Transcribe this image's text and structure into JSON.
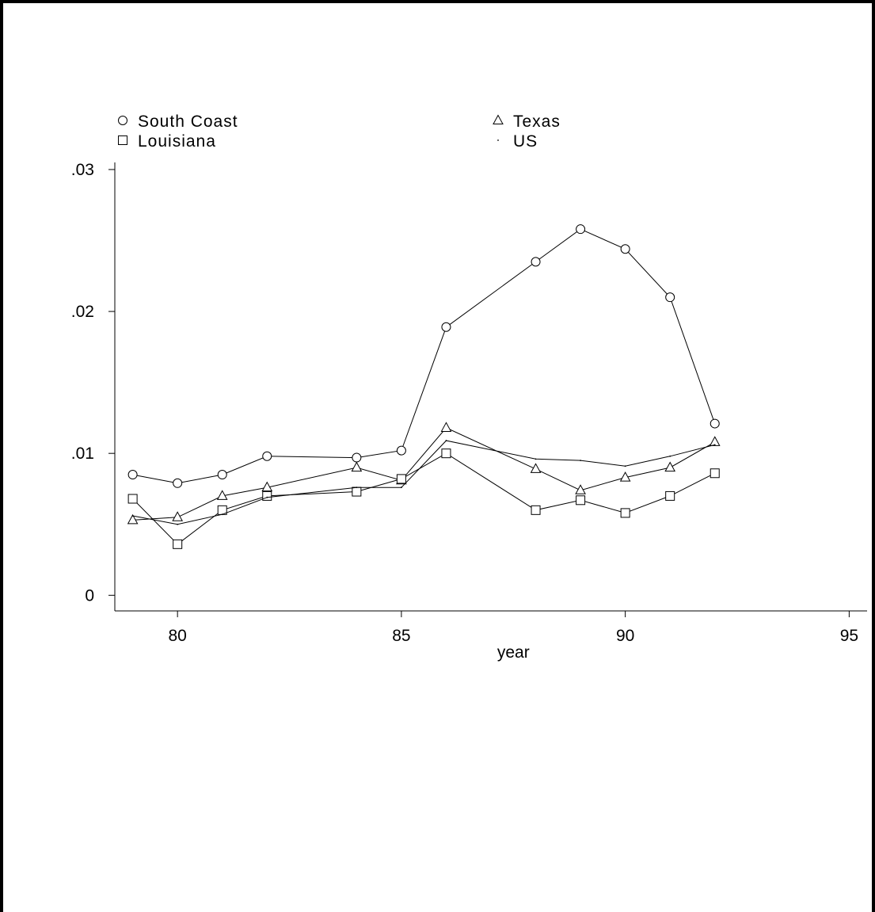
{
  "chart_data": {
    "type": "line",
    "xlabel": "year",
    "ylabel": "",
    "xlim": [
      78.6,
      95.4
    ],
    "ylim": [
      -0.0011,
      0.0305
    ],
    "xticks": [
      80,
      85,
      90,
      95
    ],
    "xtick_labels": [
      "80",
      "85",
      "90",
      "95"
    ],
    "yticks": [
      0,
      0.01,
      0.02,
      0.03
    ],
    "ytick_labels": [
      "0",
      ".01",
      ".02",
      ".03"
    ],
    "grid": false,
    "legend_position": "top",
    "series": [
      {
        "name": "South Coast",
        "marker": "circle",
        "x": [
          79,
          80,
          81,
          82,
          84,
          85,
          86,
          88,
          89,
          90,
          91,
          92
        ],
        "y": [
          0.0085,
          0.0079,
          0.0085,
          0.0098,
          0.0097,
          0.0102,
          0.0189,
          0.0235,
          0.0258,
          0.0244,
          0.021,
          0.0121
        ]
      },
      {
        "name": "Texas",
        "marker": "triangle",
        "x": [
          79,
          80,
          81,
          82,
          84,
          85,
          86,
          88,
          89,
          90,
          91,
          92
        ],
        "y": [
          0.0053,
          0.0055,
          0.007,
          0.0076,
          0.009,
          0.0081,
          0.0118,
          0.0089,
          0.0074,
          0.0083,
          0.009,
          0.0108
        ]
      },
      {
        "name": "Louisiana",
        "marker": "square",
        "x": [
          79,
          80,
          81,
          82,
          84,
          85,
          86,
          88,
          89,
          90,
          91,
          92
        ],
        "y": [
          0.0068,
          0.0036,
          0.006,
          0.007,
          0.0073,
          0.0082,
          0.01,
          0.006,
          0.0067,
          0.0058,
          0.007,
          0.0086
        ]
      },
      {
        "name": "US",
        "marker": "dot",
        "x": [
          79,
          80,
          81,
          82,
          84,
          85,
          86,
          88,
          89,
          90,
          91,
          92
        ],
        "y": [
          0.0056,
          0.005,
          0.0057,
          0.0069,
          0.0076,
          0.0076,
          0.0109,
          0.0096,
          0.0095,
          0.0091,
          0.0098,
          0.0106
        ]
      }
    ]
  }
}
